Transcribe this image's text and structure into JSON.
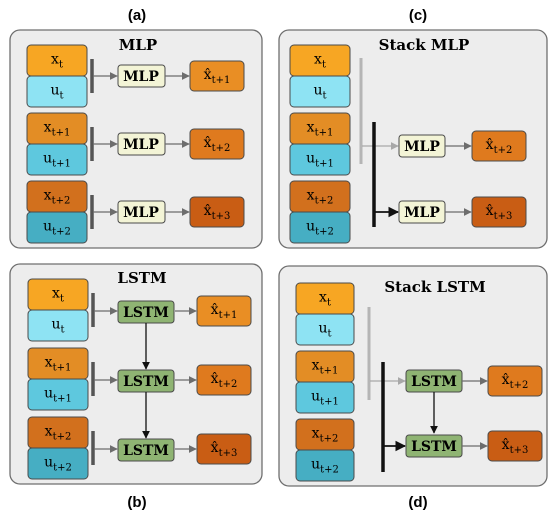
{
  "colors": {
    "x_t": "#f7a623",
    "x_t1": "#e38d25",
    "x_t2": "#d2701d",
    "u_t": "#8ee3f3",
    "u_t1": "#5ec8de",
    "u_t2": "#46aec3",
    "pred_1": "#e98e24",
    "pred_2": "#df7a1e",
    "pred_3": "#c95d14",
    "mlp_fill": "#f3f4d6",
    "lstm_fill": "#8fb473",
    "panel_fill": "#ededed",
    "panel_border": "#6f6f6f"
  },
  "panels": {
    "a": {
      "label": "(a)",
      "title": "MLP",
      "block": "MLP"
    },
    "b": {
      "label": "(b)",
      "title": "LSTM",
      "block": "LSTM"
    },
    "c": {
      "label": "(c)",
      "title": "Stack MLP",
      "block": "MLP"
    },
    "d": {
      "label": "(d)",
      "title": "Stack LSTM",
      "block": "LSTM"
    }
  },
  "inputs": [
    {
      "x": "x",
      "x_sub": "t",
      "u": "u",
      "u_sub": "t"
    },
    {
      "x": "x",
      "x_sub": "t+1",
      "u": "u",
      "u_sub": "t+1"
    },
    {
      "x": "x",
      "x_sub": "t+2",
      "u": "u",
      "u_sub": "t+2"
    }
  ],
  "outputs": [
    {
      "base": "x̂",
      "sub": "t+1"
    },
    {
      "base": "x̂",
      "sub": "t+2"
    },
    {
      "base": "x̂",
      "sub": "t+3"
    }
  ],
  "stack_outputs": [
    {
      "base": "x̂",
      "sub": "t+2"
    },
    {
      "base": "x̂",
      "sub": "t+3"
    }
  ]
}
